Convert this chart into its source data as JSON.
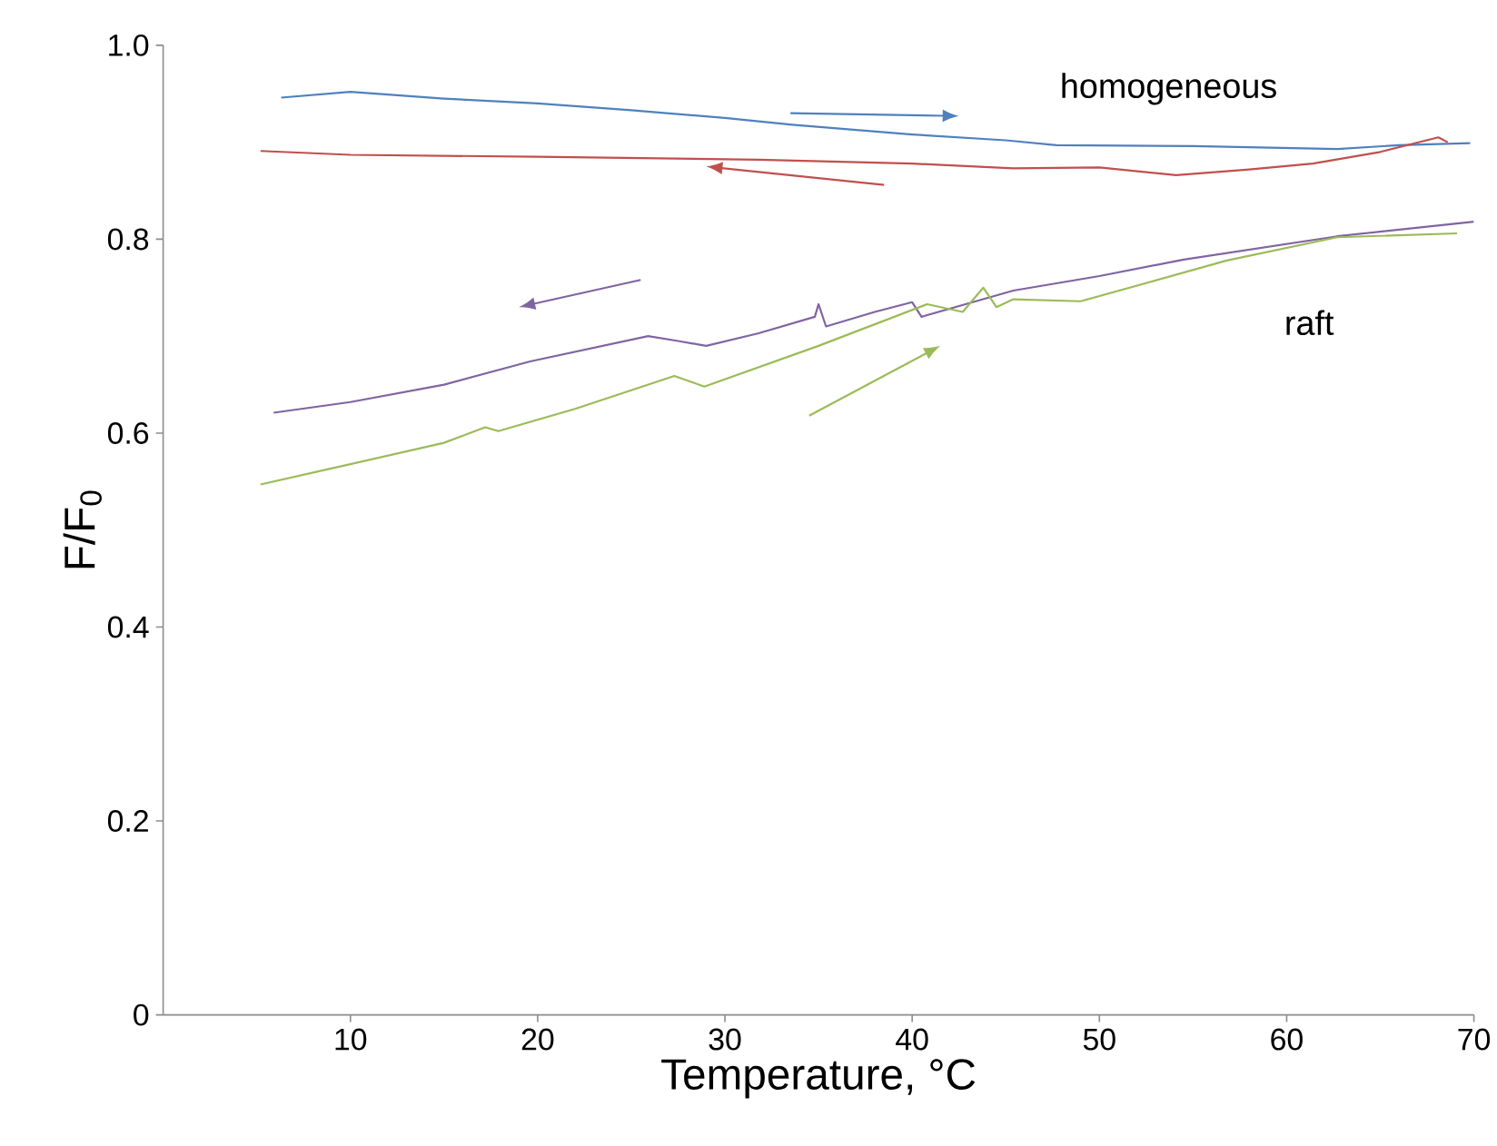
{
  "chart_data": {
    "type": "line",
    "xlabel": "Temperature, °C",
    "ylabel": "F/F$_{0}$",
    "xlim": [
      0,
      70
    ],
    "xticks": [
      10,
      20,
      30,
      40,
      50,
      60,
      70
    ],
    "ylim": [
      0,
      1
    ],
    "yticks": [
      0,
      0.2,
      0.4,
      0.6,
      0.8,
      {
        "value": 1,
        "label": "1.0"
      }
    ],
    "grid": false,
    "marker": "none",
    "line_style": "solid",
    "annotations": [
      "homogeneous",
      "raft"
    ],
    "series": [
      {
        "color": "#4f81bd",
        "x": [
          6.3,
          10,
          15,
          20,
          25,
          30,
          33.6,
          40,
          45,
          47.7,
          55,
          62.7,
          66,
          69.8
        ],
        "values": [
          0.946,
          0.952,
          0.945,
          0.94,
          0.933,
          0.925,
          0.918,
          0.908,
          0.902,
          0.897,
          0.896,
          0.893,
          0.897,
          0.899
        ]
      },
      {
        "color": "#c0504d",
        "x": [
          5.2,
          10,
          20,
          31.8,
          40,
          45.4,
          50,
          54.1,
          58,
          61.4,
          65,
          68.1,
          68.6
        ],
        "values": [
          0.891,
          0.887,
          0.885,
          0.882,
          0.878,
          0.873,
          0.874,
          0.866,
          0.872,
          0.878,
          0.89,
          0.905,
          0.9
        ]
      },
      {
        "color": "#8064a2",
        "x": [
          5.9,
          10,
          15,
          19.6,
          25.9,
          27.5,
          29.0,
          31.8,
          34.8,
          35,
          35.4,
          38,
          40,
          40.5,
          45.4,
          50,
          54.5,
          62.7,
          70
        ],
        "values": [
          0.621,
          0.632,
          0.65,
          0.674,
          0.7,
          0.695,
          0.69,
          0.703,
          0.72,
          0.733,
          0.71,
          0.725,
          0.735,
          0.72,
          0.747,
          0.762,
          0.779,
          0.803,
          0.818
        ]
      },
      {
        "color": "#9bbb59",
        "x": [
          5.2,
          10,
          15,
          17.2,
          17.9,
          22,
          27.3,
          28.9,
          35,
          40.8,
          42.7,
          43.8,
          44.5,
          45.4,
          49,
          56.8,
          62.7,
          69.1
        ],
        "values": [
          0.547,
          0.568,
          0.59,
          0.606,
          0.602,
          0.625,
          0.659,
          0.648,
          0.69,
          0.733,
          0.725,
          0.75,
          0.73,
          0.738,
          0.736,
          0.778,
          0.802,
          0.806
        ]
      }
    ]
  }
}
